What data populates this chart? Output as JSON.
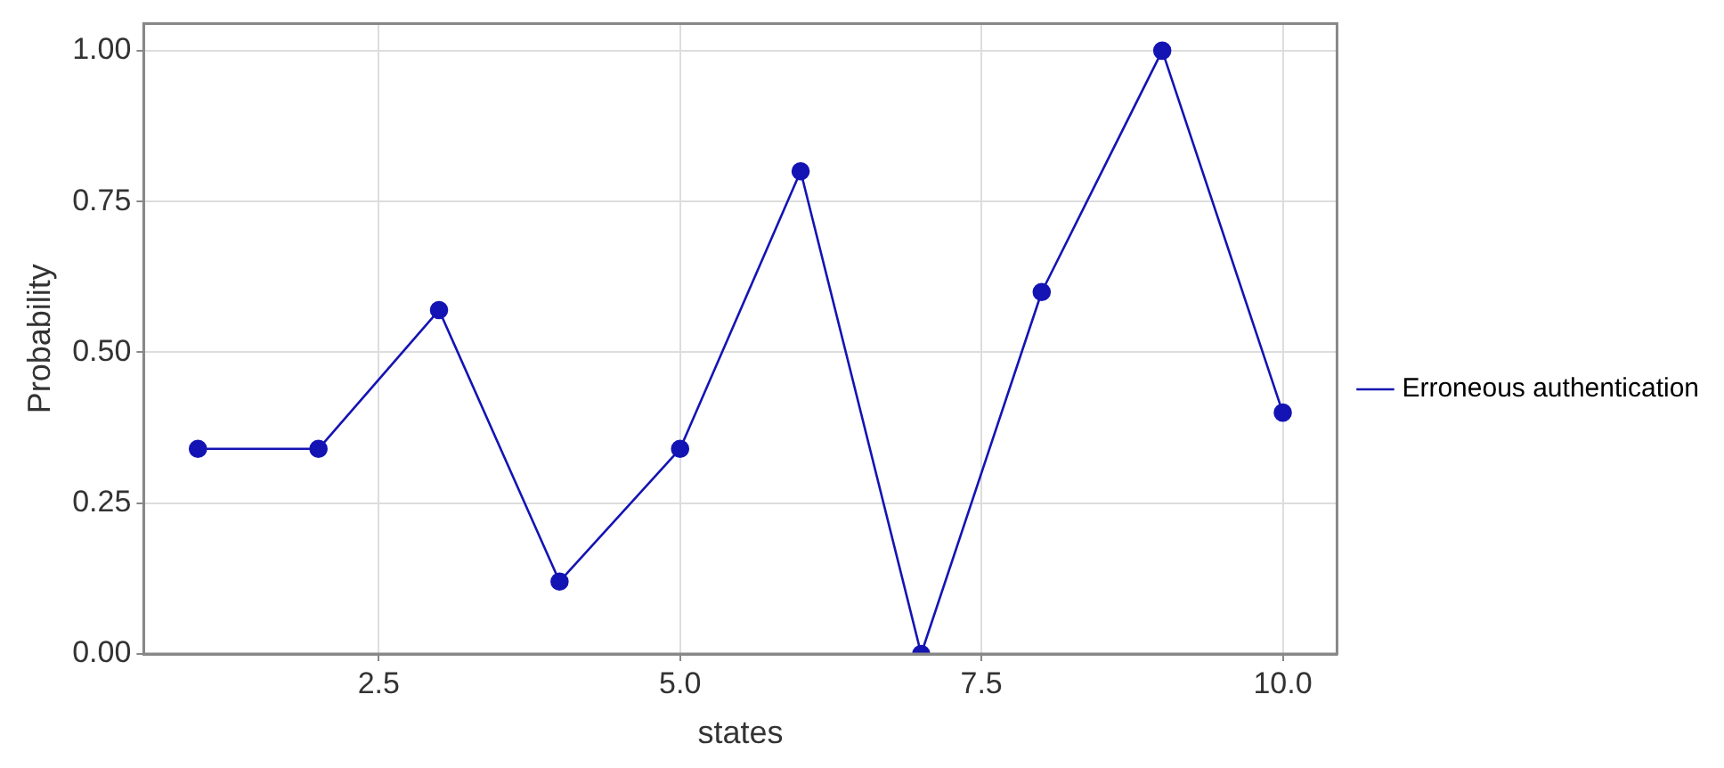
{
  "chart_data": {
    "type": "line",
    "xlabel": "states",
    "ylabel": "Probability",
    "x": [
      1,
      2,
      3,
      4,
      5,
      6,
      7,
      8,
      9,
      10
    ],
    "series": [
      {
        "name": "Erroneous authentication",
        "color": "#1414b4",
        "values": [
          0.34,
          0.34,
          0.57,
          0.12,
          0.34,
          0.8,
          0,
          0.6,
          1,
          0.4
        ]
      }
    ],
    "xlim": [
      0.55,
      10.45
    ],
    "xticks": [
      {
        "value": 2.5,
        "label": "2.5"
      },
      {
        "value": 5,
        "label": "5.0"
      },
      {
        "value": 7.5,
        "label": "7.5"
      },
      {
        "value": 10,
        "label": "10.0"
      }
    ],
    "ylim": [
      0,
      1.045
    ],
    "yticks": [
      {
        "value": 0,
        "label": "0.00"
      },
      {
        "value": 0.25,
        "label": "0.25"
      },
      {
        "value": 0.5,
        "label": "0.50"
      },
      {
        "value": 0.75,
        "label": "0.75"
      },
      {
        "value": 1,
        "label": "1.00"
      }
    ],
    "grid": true,
    "legend": "right",
    "marker": "circle",
    "line_style": "solid"
  }
}
